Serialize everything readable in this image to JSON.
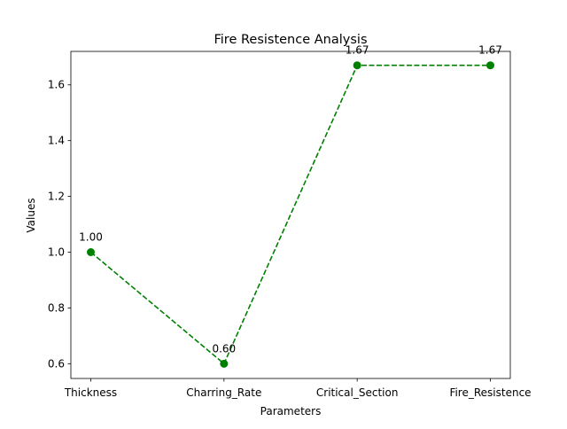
{
  "chart_data": {
    "type": "line",
    "title": "Fire Resistence Analysis",
    "xlabel": "Parameters",
    "ylabel": "Values",
    "categories": [
      "Thickness",
      "Charring_Rate",
      "Critical_Section",
      "Fire_Resistence"
    ],
    "series": [
      {
        "values": [
          1.0,
          0.6,
          1.67,
          1.67
        ],
        "labels": [
          "1.00",
          "0.60",
          "1.67",
          "1.67"
        ],
        "color": "#008000",
        "line_style": "dashed",
        "marker": "circle"
      }
    ],
    "ylim": [
      0.547,
      1.72
    ],
    "yticks": [
      0.6,
      0.8,
      1.0,
      1.2,
      1.4,
      1.6
    ],
    "ytick_labels": [
      "0.6",
      "0.8",
      "1.0",
      "1.2",
      "1.4",
      "1.6"
    ],
    "grid": false,
    "legend": false
  }
}
